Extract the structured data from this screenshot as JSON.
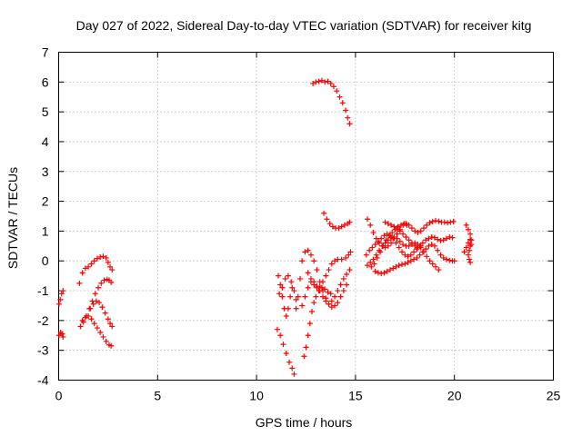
{
  "chart_data": {
    "type": "scatter",
    "title": "Day 027 of 2022, Sidereal Day-to-day VTEC variation (SDTVAR) for receiver kitg",
    "xlabel": "GPS time / hours",
    "ylabel": "SDTVAR / TECUs",
    "xlim": [
      0,
      25
    ],
    "ylim": [
      -4,
      7
    ],
    "xticks": [
      "0",
      "5",
      "10",
      "15",
      "20",
      "25"
    ],
    "yticks": [
      "-4",
      "-3",
      "-2",
      "-1",
      "0",
      "1",
      "2",
      "3",
      "4",
      "5",
      "6",
      "7"
    ],
    "grid": true,
    "marker": "plus",
    "series_color": "#ff0000",
    "tracks": [
      [
        [
          0.02,
          -1.45
        ],
        [
          0.08,
          -1.3
        ],
        [
          0.15,
          -1.1
        ],
        [
          0.22,
          -1.0
        ]
      ],
      [
        [
          0.02,
          -2.5
        ],
        [
          0.1,
          -2.4
        ],
        [
          0.18,
          -2.45
        ],
        [
          0.22,
          -2.55
        ]
      ],
      [
        [
          1.05,
          -0.75
        ],
        [
          1.2,
          -0.4
        ],
        [
          1.35,
          -0.25
        ],
        [
          1.5,
          -0.2
        ],
        [
          1.65,
          -0.1
        ],
        [
          1.8,
          0.0
        ],
        [
          1.95,
          0.08
        ],
        [
          2.1,
          0.13
        ],
        [
          2.25,
          0.15
        ],
        [
          2.4,
          0.1
        ],
        [
          2.5,
          -0.05
        ],
        [
          2.6,
          -0.2
        ],
        [
          2.7,
          -0.3
        ]
      ],
      [
        [
          1.1,
          -2.2
        ],
        [
          1.25,
          -2.05
        ],
        [
          1.4,
          -1.85
        ],
        [
          1.55,
          -1.6
        ],
        [
          1.7,
          -1.35
        ],
        [
          1.85,
          -1.1
        ],
        [
          2.0,
          -0.9
        ],
        [
          2.15,
          -0.75
        ],
        [
          2.3,
          -0.65
        ],
        [
          2.45,
          -0.62
        ],
        [
          2.55,
          -0.65
        ],
        [
          2.65,
          -0.72
        ]
      ],
      [
        [
          1.2,
          -2.0
        ],
        [
          1.35,
          -1.9
        ],
        [
          1.5,
          -1.85
        ],
        [
          1.65,
          -1.95
        ],
        [
          1.8,
          -2.1
        ],
        [
          1.95,
          -2.25
        ],
        [
          2.1,
          -2.4
        ],
        [
          2.25,
          -2.55
        ],
        [
          2.4,
          -2.7
        ],
        [
          2.55,
          -2.82
        ],
        [
          2.65,
          -2.85
        ]
      ],
      [
        [
          1.6,
          -1.6
        ],
        [
          1.75,
          -1.45
        ],
        [
          1.9,
          -1.35
        ],
        [
          2.05,
          -1.4
        ],
        [
          2.2,
          -1.55
        ],
        [
          2.35,
          -1.75
        ],
        [
          2.5,
          -1.95
        ],
        [
          2.6,
          -2.1
        ],
        [
          2.7,
          -2.2
        ]
      ],
      [
        [
          11.05,
          -2.3
        ],
        [
          11.2,
          -2.5
        ],
        [
          11.35,
          -2.8
        ],
        [
          11.5,
          -3.1
        ],
        [
          11.65,
          -3.4
        ],
        [
          11.8,
          -3.6
        ],
        [
          11.9,
          -3.8
        ]
      ],
      [
        [
          11.1,
          -0.5
        ],
        [
          11.2,
          -0.8
        ],
        [
          11.3,
          -1.2
        ],
        [
          11.4,
          -1.6
        ],
        [
          11.5,
          -1.85
        ],
        [
          11.6,
          -1.6
        ],
        [
          11.7,
          -1.2
        ],
        [
          11.8,
          -0.9
        ],
        [
          11.9,
          -1.0
        ],
        [
          12.0,
          -1.3
        ]
      ],
      [
        [
          11.15,
          -1.1
        ],
        [
          11.3,
          -0.9
        ],
        [
          11.45,
          -0.6
        ],
        [
          11.6,
          -0.5
        ],
        [
          11.75,
          -0.7
        ]
      ],
      [
        [
          12.0,
          -1.6
        ],
        [
          12.1,
          -1.2
        ],
        [
          12.2,
          -0.6
        ],
        [
          12.3,
          0.0
        ],
        [
          12.45,
          0.3
        ],
        [
          12.6,
          0.35
        ],
        [
          12.75,
          0.2
        ],
        [
          12.9,
          0.0
        ],
        [
          13.05,
          -0.3
        ],
        [
          13.2,
          -0.7
        ],
        [
          13.35,
          -1.0
        ],
        [
          13.5,
          -1.25
        ],
        [
          13.65,
          -1.45
        ],
        [
          13.8,
          -1.55
        ],
        [
          13.95,
          -1.5
        ],
        [
          14.1,
          -1.4
        ],
        [
          14.25,
          -1.2
        ],
        [
          14.4,
          -1.0
        ],
        [
          14.55,
          -0.8
        ]
      ],
      [
        [
          12.3,
          -1.5
        ],
        [
          12.45,
          -1.2
        ],
        [
          12.6,
          -0.9
        ],
        [
          12.75,
          -0.7
        ],
        [
          12.9,
          -0.7
        ],
        [
          13.05,
          -0.85
        ],
        [
          13.2,
          -1.0
        ],
        [
          13.35,
          -1.2
        ],
        [
          13.5,
          -1.35
        ],
        [
          13.65,
          -1.45
        ],
        [
          13.8,
          -1.35
        ],
        [
          13.95,
          -1.2
        ],
        [
          14.1,
          -1.0
        ],
        [
          14.25,
          -0.8
        ],
        [
          14.4,
          -0.6
        ],
        [
          14.55,
          -0.45
        ],
        [
          14.7,
          -0.3
        ]
      ],
      [
        [
          12.4,
          -3.2
        ],
        [
          12.5,
          -2.9
        ],
        [
          12.6,
          -2.5
        ],
        [
          12.7,
          -2.1
        ],
        [
          12.8,
          -1.7
        ],
        [
          12.9,
          -1.4
        ],
        [
          13.0,
          -1.2
        ],
        [
          13.15,
          -1.0
        ],
        [
          13.3,
          -0.9
        ],
        [
          13.45,
          -0.95
        ],
        [
          13.6,
          -1.05
        ],
        [
          13.75,
          -1.1
        ]
      ],
      [
        [
          12.6,
          -0.4
        ],
        [
          12.75,
          -0.6
        ],
        [
          12.9,
          -0.8
        ],
        [
          13.05,
          -0.9
        ],
        [
          13.2,
          -0.85
        ],
        [
          13.35,
          -0.7
        ],
        [
          13.5,
          -0.5
        ],
        [
          13.65,
          -0.3
        ],
        [
          13.8,
          -0.1
        ],
        [
          13.95,
          0.0
        ],
        [
          14.1,
          0.05
        ],
        [
          14.3,
          0.05
        ],
        [
          14.5,
          0.1
        ],
        [
          14.65,
          0.2
        ],
        [
          14.75,
          0.3
        ]
      ],
      [
        [
          13.4,
          1.6
        ],
        [
          13.55,
          1.4
        ],
        [
          13.7,
          1.25
        ],
        [
          13.85,
          1.15
        ],
        [
          14.0,
          1.1
        ],
        [
          14.15,
          1.1
        ],
        [
          14.3,
          1.15
        ],
        [
          14.45,
          1.2
        ],
        [
          14.6,
          1.25
        ],
        [
          14.7,
          1.3
        ]
      ],
      [
        [
          12.85,
          5.95
        ],
        [
          13.0,
          6.0
        ],
        [
          13.15,
          6.02
        ],
        [
          13.3,
          6.05
        ],
        [
          13.45,
          6.0
        ],
        [
          13.6,
          6.02
        ],
        [
          13.75,
          5.95
        ],
        [
          13.9,
          5.85
        ],
        [
          14.05,
          5.7
        ],
        [
          14.2,
          5.5
        ],
        [
          14.35,
          5.3
        ],
        [
          14.5,
          5.05
        ],
        [
          14.6,
          4.8
        ],
        [
          14.7,
          4.6
        ]
      ],
      [
        [
          15.6,
          1.4
        ],
        [
          15.75,
          1.2
        ],
        [
          15.9,
          0.95
        ],
        [
          16.05,
          0.75
        ],
        [
          16.2,
          0.6
        ],
        [
          16.35,
          0.5
        ],
        [
          16.5,
          0.45
        ],
        [
          16.65,
          0.5
        ],
        [
          16.8,
          0.6
        ],
        [
          16.95,
          0.75
        ],
        [
          17.1,
          0.9
        ],
        [
          17.25,
          1.05
        ],
        [
          17.4,
          1.2
        ],
        [
          17.55,
          1.25
        ],
        [
          17.7,
          1.2
        ],
        [
          17.85,
          1.1
        ],
        [
          18.0,
          1.0
        ],
        [
          18.15,
          0.95
        ],
        [
          18.3,
          1.0
        ],
        [
          18.45,
          1.1
        ],
        [
          18.6,
          1.2
        ],
        [
          18.75,
          1.28
        ],
        [
          18.9,
          1.32
        ],
        [
          19.05,
          1.35
        ],
        [
          19.2,
          1.33
        ],
        [
          19.35,
          1.3
        ],
        [
          19.5,
          1.3
        ],
        [
          19.65,
          1.28
        ],
        [
          19.8,
          1.3
        ],
        [
          19.95,
          1.32
        ]
      ],
      [
        [
          15.55,
          0.2
        ],
        [
          15.7,
          0.35
        ],
        [
          15.85,
          0.45
        ],
        [
          16.0,
          0.55
        ],
        [
          16.15,
          0.65
        ],
        [
          16.3,
          0.75
        ],
        [
          16.45,
          0.85
        ],
        [
          16.6,
          0.9
        ],
        [
          16.75,
          0.85
        ],
        [
          16.9,
          0.75
        ],
        [
          17.05,
          0.6
        ],
        [
          17.2,
          0.45
        ],
        [
          17.35,
          0.3
        ],
        [
          17.5,
          0.2
        ],
        [
          17.65,
          0.15
        ],
        [
          17.8,
          0.2
        ],
        [
          17.95,
          0.3
        ],
        [
          18.1,
          0.4
        ],
        [
          18.25,
          0.5
        ],
        [
          18.4,
          0.6
        ],
        [
          18.55,
          0.7
        ],
        [
          18.7,
          0.75
        ],
        [
          18.85,
          0.8
        ],
        [
          19.0,
          0.78
        ],
        [
          19.15,
          0.72
        ],
        [
          19.3,
          0.68
        ],
        [
          19.45,
          0.7
        ],
        [
          19.6,
          0.75
        ],
        [
          19.75,
          0.8
        ],
        [
          19.9,
          0.78
        ]
      ],
      [
        [
          15.6,
          -0.15
        ],
        [
          15.75,
          -0.05
        ],
        [
          15.9,
          0.05
        ],
        [
          16.05,
          0.2
        ],
        [
          16.2,
          0.35
        ],
        [
          16.35,
          0.5
        ],
        [
          16.5,
          0.6
        ],
        [
          16.65,
          0.7
        ],
        [
          16.8,
          0.78
        ],
        [
          16.95,
          0.8
        ],
        [
          17.1,
          0.75
        ],
        [
          17.25,
          0.65
        ],
        [
          17.4,
          0.55
        ],
        [
          17.55,
          0.5
        ],
        [
          17.7,
          0.5
        ],
        [
          17.85,
          0.55
        ],
        [
          18.0,
          0.6
        ],
        [
          18.15,
          0.55
        ],
        [
          18.3,
          0.45
        ],
        [
          18.45,
          0.3
        ],
        [
          18.6,
          0.15
        ],
        [
          18.75,
          0.0
        ],
        [
          18.9,
          -0.1
        ],
        [
          19.05,
          -0.2
        ],
        [
          19.2,
          -0.3
        ]
      ],
      [
        [
          15.8,
          -0.2
        ],
        [
          15.95,
          -0.1
        ],
        [
          16.1,
          0.1
        ],
        [
          16.25,
          0.3
        ],
        [
          16.4,
          0.5
        ],
        [
          16.55,
          0.7
        ],
        [
          16.7,
          0.85
        ],
        [
          16.85,
          0.95
        ],
        [
          17.0,
          1.05
        ],
        [
          17.15,
          1.15
        ],
        [
          17.3,
          1.2
        ],
        [
          17.45,
          1.25
        ],
        [
          17.6,
          1.2
        ]
      ],
      [
        [
          16.0,
          -0.35
        ],
        [
          16.15,
          -0.4
        ],
        [
          16.3,
          -0.42
        ],
        [
          16.45,
          -0.4
        ],
        [
          16.6,
          -0.35
        ],
        [
          16.75,
          -0.3
        ],
        [
          16.9,
          -0.25
        ],
        [
          17.05,
          -0.2
        ],
        [
          17.2,
          -0.15
        ],
        [
          17.35,
          -0.12
        ],
        [
          17.5,
          -0.1
        ],
        [
          17.65,
          -0.05
        ],
        [
          17.8,
          0.0
        ],
        [
          17.95,
          0.05
        ],
        [
          18.1,
          0.1
        ],
        [
          18.25,
          0.2
        ],
        [
          18.4,
          0.3
        ],
        [
          18.55,
          0.4
        ],
        [
          18.7,
          0.5
        ],
        [
          18.85,
          0.55
        ],
        [
          19.0,
          0.5
        ],
        [
          19.15,
          0.35
        ],
        [
          19.3,
          0.2
        ],
        [
          19.45,
          0.1
        ],
        [
          19.6,
          0.05
        ],
        [
          19.75,
          0.02
        ],
        [
          19.9,
          0.0
        ],
        [
          20.0,
          0.0
        ]
      ],
      [
        [
          16.5,
          1.3
        ],
        [
          16.65,
          1.25
        ],
        [
          16.8,
          1.2
        ],
        [
          16.95,
          1.15
        ],
        [
          17.1,
          1.1
        ],
        [
          17.25,
          1.0
        ],
        [
          17.4,
          0.9
        ],
        [
          17.55,
          0.8
        ],
        [
          17.7,
          0.7
        ],
        [
          17.85,
          0.6
        ],
        [
          18.0,
          0.5
        ],
        [
          18.15,
          0.45
        ],
        [
          18.3,
          0.5
        ]
      ],
      [
        [
          20.6,
          1.2
        ],
        [
          20.7,
          1.05
        ],
        [
          20.8,
          0.9
        ],
        [
          20.85,
          0.7
        ],
        [
          20.8,
          0.5
        ],
        [
          20.75,
          0.35
        ],
        [
          20.7,
          0.2
        ],
        [
          20.75,
          0.05
        ],
        [
          20.8,
          -0.05
        ]
      ],
      [
        [
          20.5,
          0.3
        ],
        [
          20.6,
          0.45
        ],
        [
          20.7,
          0.6
        ],
        [
          20.8,
          0.72
        ],
        [
          20.85,
          0.55
        ]
      ]
    ]
  }
}
